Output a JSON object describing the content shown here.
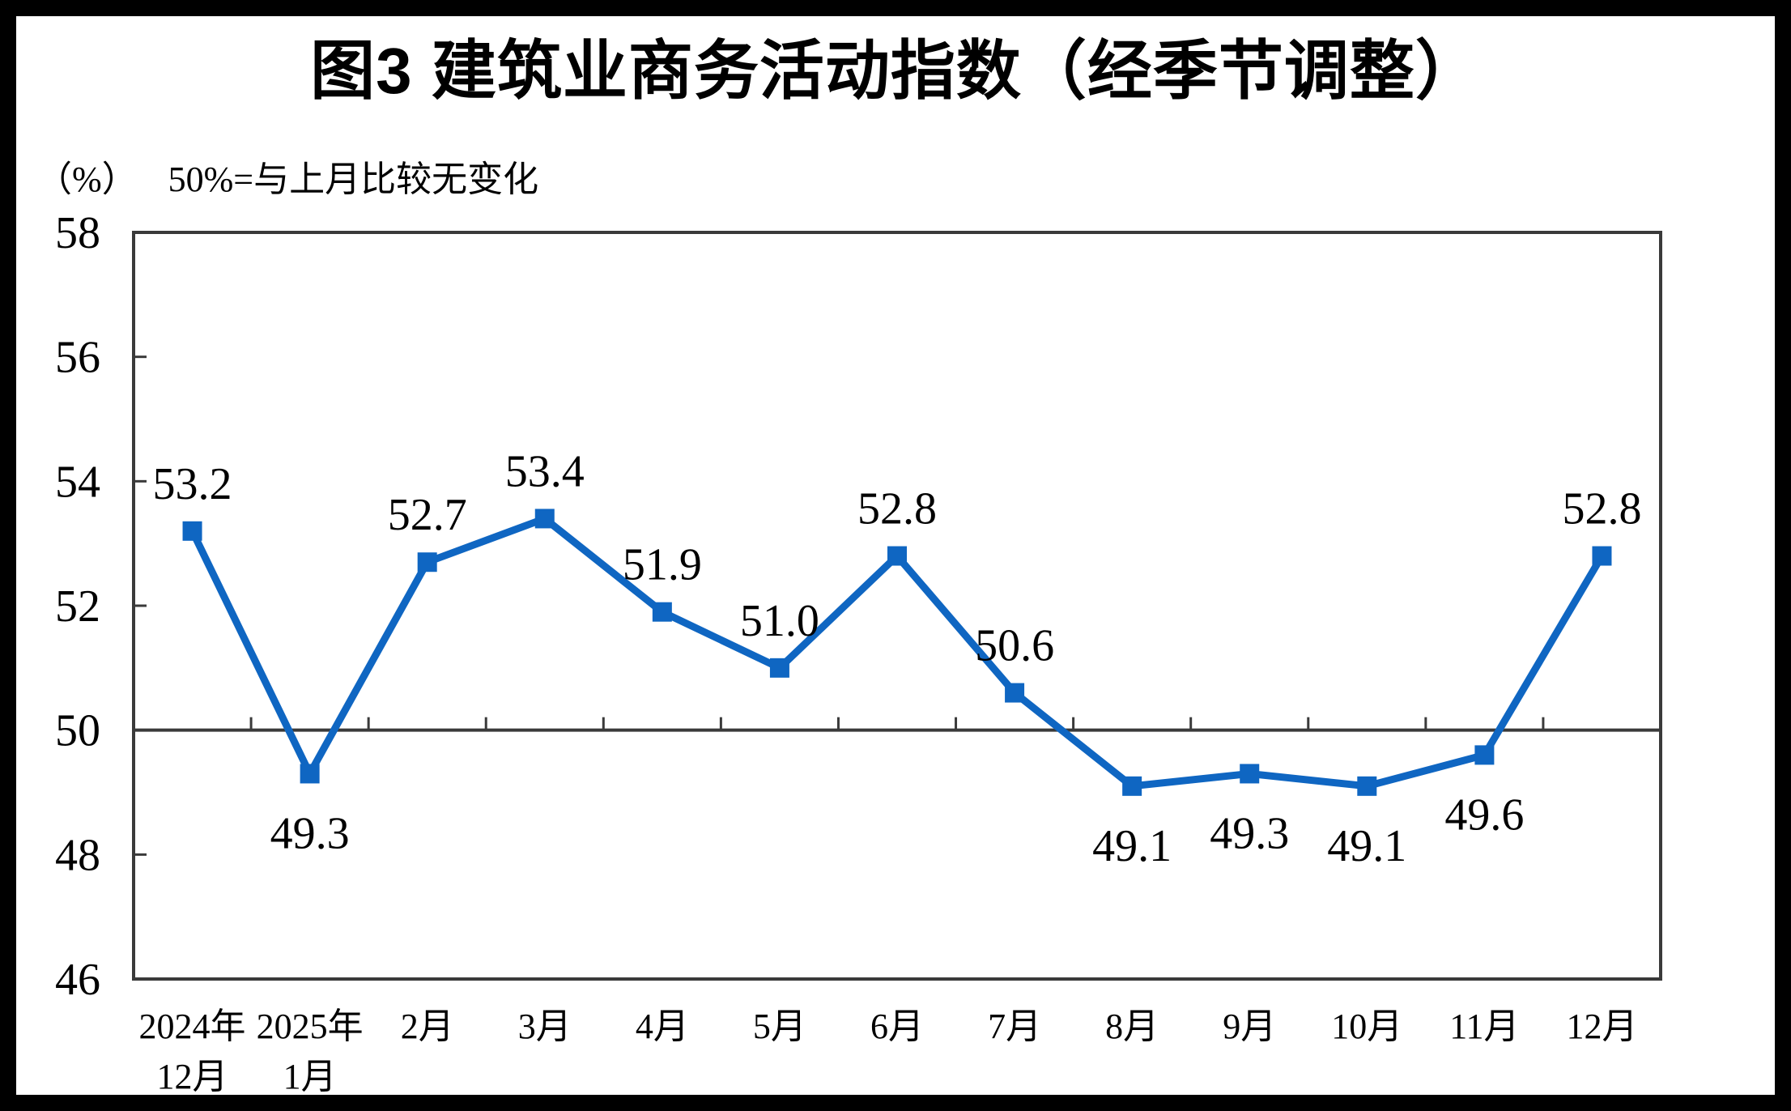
{
  "title": "图3 建筑业商务活动指数（经季节调整）",
  "subtitle": {
    "unit": "（%）",
    "note": "50%=与上月比较无变化"
  },
  "colors": {
    "series": "#0f66c2",
    "axis": "#3a3a3a",
    "text": "#000000",
    "frame": "#000000",
    "background": "#ffffff"
  },
  "chart_data": {
    "type": "line",
    "title": "图3 建筑业商务活动指数（经季节调整）",
    "unit_label": "（%）",
    "annotation": "50%=与上月比较无变化",
    "categories": [
      "2024年\n12月",
      "2025年\n1月",
      "2月",
      "3月",
      "4月",
      "5月",
      "6月",
      "7月",
      "8月",
      "9月",
      "10月",
      "11月",
      "12月"
    ],
    "values": [
      53.2,
      49.3,
      52.7,
      53.4,
      51.9,
      51.0,
      52.8,
      50.6,
      49.1,
      49.3,
      49.1,
      49.6,
      52.8
    ],
    "data_labels": [
      "53.2",
      "49.3",
      "52.7",
      "53.4",
      "51.9",
      "51.0",
      "52.8",
      "50.6",
      "49.1",
      "49.3",
      "49.1",
      "49.6",
      "52.8"
    ],
    "label_positions": [
      "above",
      "below",
      "above",
      "above",
      "above",
      "above",
      "above",
      "above",
      "below",
      "below",
      "below",
      "below",
      "above"
    ],
    "ylim": [
      46,
      58
    ],
    "ytick_step": 2,
    "yticks": [
      46,
      48,
      50,
      52,
      54,
      56,
      58
    ],
    "reference_line": 50,
    "grid": false,
    "legend": false,
    "marker": "square"
  }
}
